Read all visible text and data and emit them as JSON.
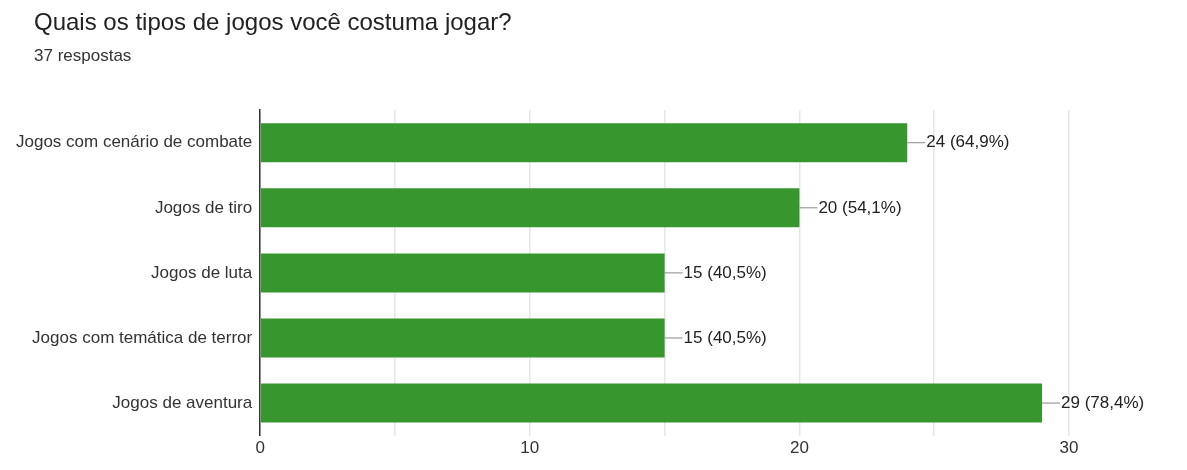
{
  "chart_data": {
    "type": "bar",
    "orientation": "horizontal",
    "title": "Quais os tipos de jogos você costuma jogar?",
    "subtitle": "37 respostas",
    "categories": [
      "Jogos com cenário de combate",
      "Jogos de tiro",
      "Jogos de luta",
      "Jogos com temática de terror",
      "Jogos de aventura"
    ],
    "values": [
      24,
      20,
      15,
      15,
      29
    ],
    "value_labels": [
      "24 (64,9%)",
      "20 (54,1%)",
      "15 (40,5%)",
      "15 (40,5%)",
      "29 (78,4%)"
    ],
    "color": "#38962f",
    "xlim": [
      0,
      30
    ],
    "xticks": [
      0,
      {
        "value": 5,
        "label": null
      },
      10,
      {
        "value": 15,
        "label": null
      },
      20,
      {
        "value": 25,
        "label": null
      },
      30
    ],
    "grid": "x",
    "legend": false
  }
}
